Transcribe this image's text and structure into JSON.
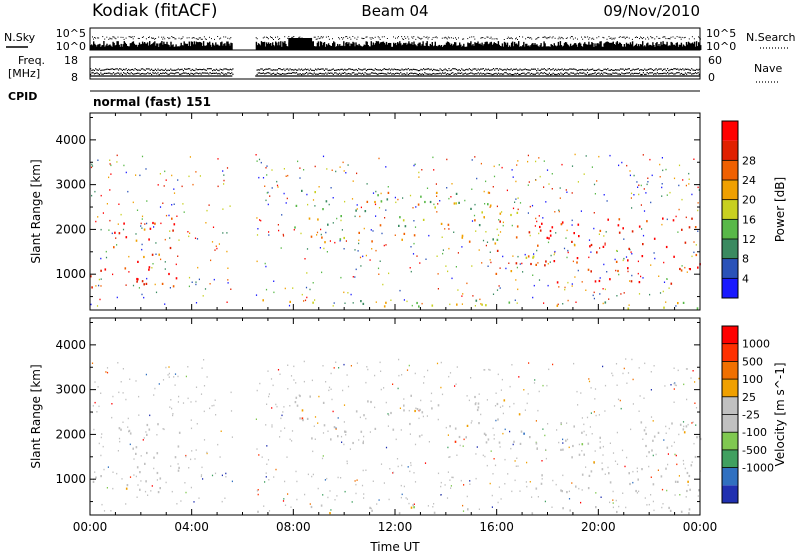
{
  "header": {
    "station": "Kodiak (fitACF)",
    "beam": "Beam 04",
    "date": "09/Nov/2010"
  },
  "strip_labels": {
    "nsky": "N.Sky",
    "nsky_tick_hi": "10^5",
    "nsky_tick_lo": "10^0",
    "nsearch": "N.Search",
    "nsearch_tick_hi": "10^5",
    "nsearch_tick_lo": "10^0",
    "freq": "Freq.",
    "freq_unit": "[MHz]",
    "freq_tick_hi": "18",
    "freq_tick_lo": "8",
    "nave": "Nave",
    "nave_tick_hi": "60",
    "nave_tick_lo": "0",
    "cpid": "CPID",
    "cpid_value": "normal (fast) 151"
  },
  "chart_data": [
    {
      "type": "heatmap",
      "panel": "power",
      "ylabel": "Slant Range [km]",
      "xlabel": "Time UT",
      "x_ticks": [
        "00:00",
        "04:00",
        "08:00",
        "12:00",
        "16:00",
        "20:00",
        "00:00"
      ],
      "y_ticks": [
        1000,
        2000,
        3000,
        4000
      ],
      "xlim_hours": [
        0,
        24
      ],
      "ylim": [
        200,
        4600
      ],
      "data_gap_hours": [
        5.6,
        6.5
      ],
      "colorbar": {
        "label": "Power [dB]",
        "ticks": [
          "4",
          "8",
          "12",
          "16",
          "20",
          "24",
          "28"
        ],
        "colors": [
          "#1a1aff",
          "#2a52b8",
          "#3a8a60",
          "#58b848",
          "#c8d020",
          "#f0a000",
          "#f06000",
          "#e02000",
          "#ff0000"
        ]
      },
      "bands": [
        {
          "t0": 0.0,
          "t1": 3.6,
          "r0": 700,
          "r1": 1300,
          "level": 0.92
        },
        {
          "t0": 0.5,
          "t1": 3.3,
          "r0": 1400,
          "r1": 2400,
          "level": 0.8
        },
        {
          "t0": 1.7,
          "t1": 3.6,
          "r0": 700,
          "r1": 1000,
          "level": 0.9
        },
        {
          "t0": 8.0,
          "t1": 16.0,
          "r0": 1700,
          "r1": 2900,
          "level": 0.5
        },
        {
          "t0": 15.8,
          "t1": 17.7,
          "r0": 900,
          "r1": 2400,
          "level": 0.65
        },
        {
          "t0": 17.5,
          "t1": 24.0,
          "r0": 700,
          "r1": 2300,
          "level": 0.88
        },
        {
          "t0": 6.5,
          "t1": 24.0,
          "r0": 250,
          "r1": 450,
          "level": 0.45
        }
      ]
    },
    {
      "type": "heatmap",
      "panel": "velocity",
      "ylabel": "Slant Range [km]",
      "xlabel": "Time UT",
      "x_ticks": [
        "00:00",
        "04:00",
        "08:00",
        "12:00",
        "16:00",
        "20:00",
        "00:00"
      ],
      "y_ticks": [
        1000,
        2000,
        3000,
        4000
      ],
      "xlim_hours": [
        0,
        24
      ],
      "ylim": [
        200,
        4600
      ],
      "data_gap_hours": [
        5.6,
        6.5
      ],
      "colorbar": {
        "label": "Velocity [m s^-1]",
        "ticks": [
          "1000",
          "500",
          "100",
          "25",
          "-25",
          "-100",
          "-500",
          "-1000"
        ],
        "colors": [
          "#2030b0",
          "#3070c0",
          "#40a060",
          "#80c850",
          "#c0c0c0",
          "#c0c0c0",
          "#f0a000",
          "#f07000",
          "#ff3000",
          "#ff0000"
        ]
      },
      "bands": [
        {
          "t0": 0.0,
          "t1": 3.6,
          "r0": 700,
          "r1": 1400,
          "level": 0.5
        },
        {
          "t0": 0.5,
          "t1": 3.5,
          "r0": 1500,
          "r1": 2400,
          "level": 0.5
        },
        {
          "t0": 8.0,
          "t1": 17.6,
          "r0": 1800,
          "r1": 2900,
          "level": 0.5
        },
        {
          "t0": 17.5,
          "t1": 24.0,
          "r0": 700,
          "r1": 2300,
          "level": 0.5
        },
        {
          "t0": 6.5,
          "t1": 24.0,
          "r0": 250,
          "r1": 450,
          "level": 0.55
        }
      ]
    }
  ],
  "colors": {
    "axis": "#000000",
    "gray_scatter": "#c0c0c0"
  }
}
